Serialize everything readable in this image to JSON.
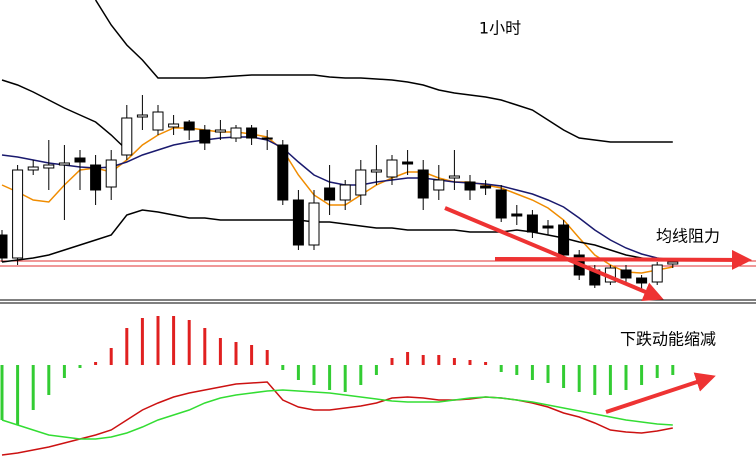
{
  "chart_data": [
    {
      "type": "candlestick",
      "title": "1小时",
      "annotations": [
        "均线阻力"
      ],
      "ylim": [
        0,
        300
      ],
      "up_color": "#ffffff",
      "down_color": "#000000",
      "open": [
        65,
        42,
        130,
        132,
        135,
        142,
        135,
        113,
        145,
        183,
        170,
        173,
        178,
        170,
        168,
        162,
        172,
        161,
        155,
        100,
        55,
        112,
        100,
        105,
        128,
        123,
        138,
        130,
        110,
        122,
        118,
        114,
        110,
        86,
        85,
        74,
        75,
        45,
        30,
        18,
        30,
        22,
        18,
        36
      ],
      "close": [
        42,
        130,
        133,
        135,
        137,
        138,
        110,
        140,
        182,
        185,
        188,
        176,
        170,
        157,
        170,
        172,
        162,
        162,
        100,
        55,
        97,
        100,
        115,
        130,
        130,
        140,
        136,
        102,
        120,
        124,
        110,
        112,
        82,
        84,
        68,
        72,
        45,
        25,
        15,
        32,
        22,
        17,
        35,
        38
      ],
      "high": [
        70,
        135,
        140,
        160,
        155,
        150,
        145,
        150,
        195,
        205,
        195,
        185,
        180,
        175,
        180,
        175,
        175,
        170,
        160,
        110,
        110,
        135,
        120,
        140,
        155,
        145,
        150,
        140,
        135,
        150,
        125,
        120,
        115,
        95,
        90,
        80,
        80,
        50,
        35,
        35,
        35,
        25,
        38,
        40
      ],
      "low": [
        38,
        35,
        125,
        110,
        80,
        110,
        95,
        100,
        140,
        170,
        165,
        165,
        160,
        150,
        160,
        158,
        155,
        150,
        95,
        50,
        50,
        85,
        90,
        95,
        115,
        115,
        125,
        90,
        100,
        110,
        100,
        105,
        78,
        75,
        62,
        65,
        40,
        20,
        12,
        15,
        18,
        10,
        15,
        32
      ],
      "lines": [
        {
          "color": "#f08c00",
          "values": [
            115,
            108,
            100,
            98,
            115,
            130,
            132,
            128,
            140,
            155,
            165,
            172,
            172,
            170,
            168,
            168,
            166,
            163,
            150,
            125,
            105,
            95,
            95,
            105,
            115,
            122,
            128,
            128,
            122,
            118,
            118,
            115,
            112,
            106,
            100,
            92,
            80,
            62,
            45,
            35,
            28,
            27,
            30,
            33
          ]
        },
        {
          "color": "#1a1a6e",
          "values": [
            145,
            143,
            140,
            137,
            135,
            133,
            132,
            133,
            138,
            145,
            150,
            155,
            158,
            160,
            162,
            163,
            163,
            160,
            152,
            138,
            125,
            118,
            115,
            115,
            118,
            120,
            122,
            122,
            120,
            118,
            117,
            116,
            114,
            110,
            106,
            100,
            93,
            82,
            70,
            60,
            52,
            46,
            42,
            40
          ]
        },
        {
          "color": "#000000",
          "values": [
            null,
            null,
            null,
            null,
            null,
            null,
            300,
            275,
            255,
            240,
            222,
            222,
            222,
            222,
            223,
            224,
            225,
            225,
            225,
            225,
            225,
            223,
            222,
            222,
            221,
            220,
            218,
            215,
            210,
            207,
            205,
            203,
            200,
            195,
            190,
            180,
            170,
            162,
            160,
            158,
            158,
            158,
            158,
            158
          ]
        },
        {
          "color": "#000000",
          "values": [
            220,
            215,
            208,
            200,
            192,
            185,
            178,
            165,
            150,
            null,
            null,
            null,
            null,
            null,
            null,
            null,
            null,
            null,
            null,
            null,
            null,
            null,
            null,
            null,
            null,
            null,
            null,
            null,
            null,
            null,
            null,
            null,
            null,
            null,
            null,
            null,
            null,
            null,
            null,
            null,
            null,
            null,
            null,
            null
          ]
        },
        {
          "color": "#000000",
          "values": [
            38,
            40,
            42,
            45,
            50,
            55,
            60,
            65,
            85,
            90,
            88,
            85,
            82,
            82,
            80,
            80,
            80,
            80,
            80,
            80,
            78,
            78,
            76,
            74,
            72,
            72,
            70,
            70,
            70,
            70,
            68,
            68,
            68,
            70,
            68,
            65,
            62,
            58,
            55,
            50,
            45,
            42,
            40,
            40
          ]
        }
      ],
      "hlines": [
        39,
        34
      ],
      "hline_color": "#e03030"
    },
    {
      "type": "macd",
      "annotations": [
        "下跌动能缩减"
      ],
      "ylim": [
        -99,
        60
      ],
      "up_color": "#e02020",
      "down_color": "#33cc33",
      "histogram": [
        -55,
        -60,
        -45,
        -30,
        -13,
        -3,
        3,
        17,
        37,
        47,
        49,
        49,
        45,
        37,
        27,
        23,
        20,
        15,
        -5,
        -15,
        -20,
        -25,
        -27,
        -20,
        -10,
        7,
        13,
        10,
        10,
        7,
        5,
        3,
        -7,
        -10,
        -15,
        -18,
        -23,
        -27,
        -30,
        -30,
        -25,
        -20,
        -13,
        -10
      ],
      "lines": [
        {
          "color": "#cc1111",
          "values": [
            -90,
            -88,
            -85,
            -82,
            -78,
            -74,
            -70,
            -65,
            -55,
            -45,
            -38,
            -32,
            -28,
            -25,
            -22,
            -19,
            -18,
            -17,
            -35,
            -42,
            -45,
            -45,
            -43,
            -41,
            -38,
            -33,
            -32,
            -33,
            -35,
            -35,
            -34,
            -32,
            -33,
            -35,
            -38,
            -42,
            -48,
            -52,
            -58,
            -65,
            -67,
            -68,
            -66,
            -63
          ]
        },
        {
          "color": "#33dd33",
          "values": [
            -55,
            -60,
            -65,
            -70,
            -72,
            -74,
            -74,
            -72,
            -68,
            -62,
            -55,
            -50,
            -45,
            -38,
            -33,
            -30,
            -28,
            -26,
            -25,
            -26,
            -27,
            -28,
            -30,
            -32,
            -34,
            -36,
            -37,
            -37,
            -37,
            -35,
            -33,
            -32,
            -33,
            -35,
            -37,
            -40,
            -43,
            -46,
            -49,
            -52,
            -55,
            -57,
            -59,
            -60
          ]
        }
      ]
    }
  ]
}
